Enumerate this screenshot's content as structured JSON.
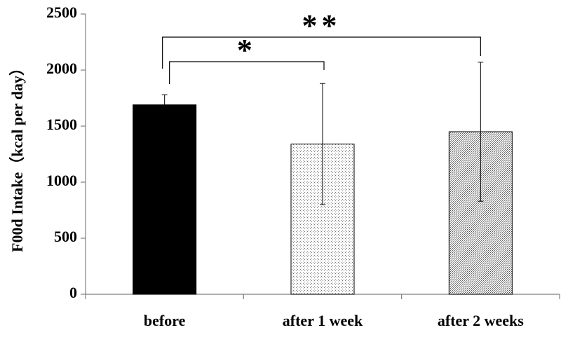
{
  "chart_data": {
    "type": "bar",
    "title": "",
    "xlabel": "",
    "ylabel": "F00d Intake（kcal per day）",
    "ylim": [
      0,
      2500
    ],
    "yticks": [
      0,
      500,
      1000,
      1500,
      2000,
      2500
    ],
    "categories": [
      "before",
      "after 1 week",
      "after 2 weeks"
    ],
    "values": [
      1690,
      1340,
      1450
    ],
    "error": [
      90,
      540,
      620
    ],
    "fills": [
      "solid",
      "sparse-dots",
      "dense-dots"
    ],
    "colors": {
      "solid": "#000000",
      "axis": "#808080",
      "bar_outline": "#000000"
    },
    "significance": [
      {
        "from": "before",
        "to": "after 1 week",
        "label": "*"
      },
      {
        "from": "before",
        "to": "after 2 weeks",
        "label": "**"
      }
    ],
    "grid": false,
    "legend": "none"
  }
}
